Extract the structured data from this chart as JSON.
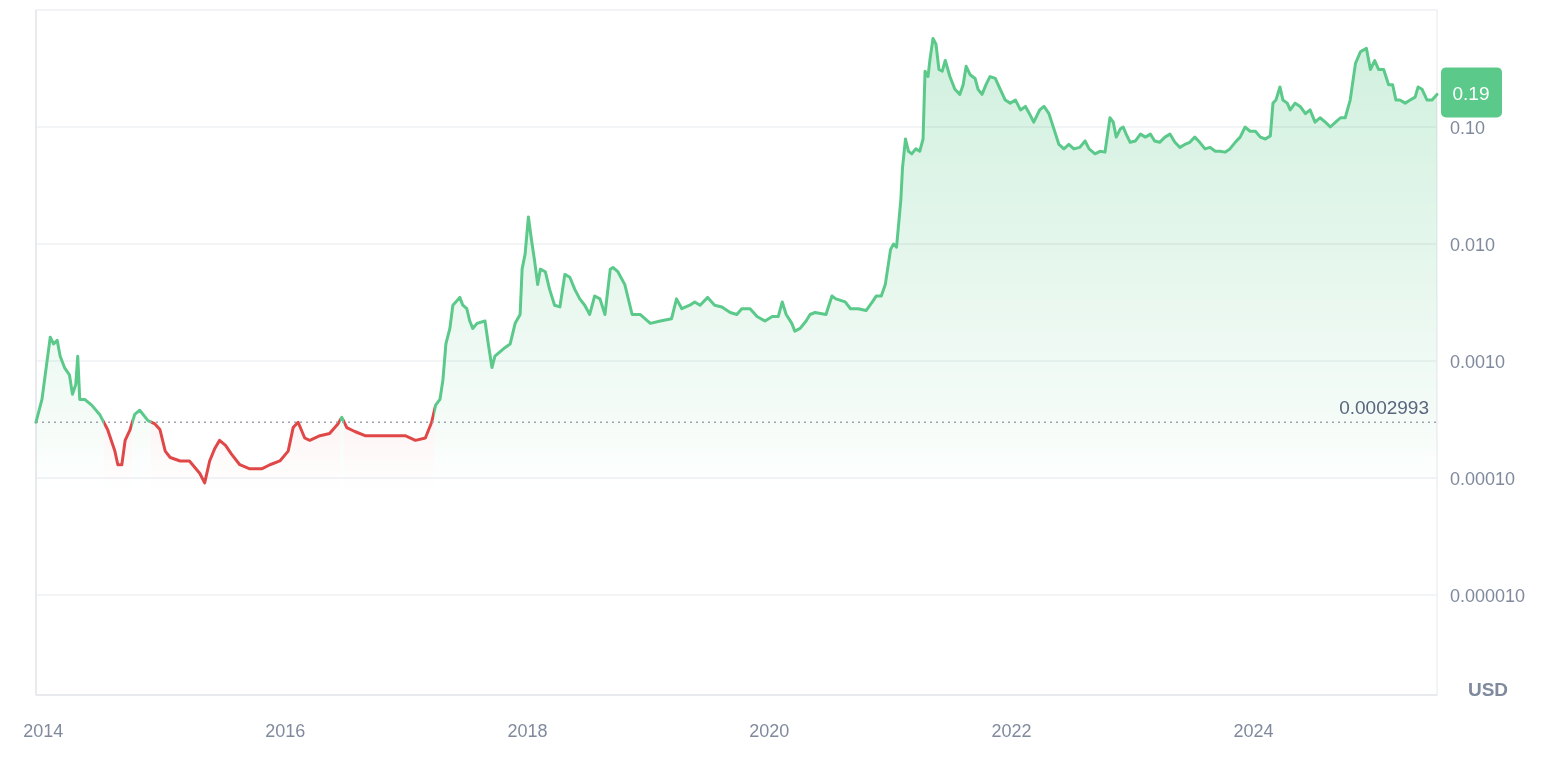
{
  "chart_data": {
    "type": "area",
    "log": "y",
    "grid": "y",
    "xlim": [
      "2013-12-10",
      "2025-07-08"
    ],
    "xticks": [
      "2014",
      "2016",
      "2018",
      "2020",
      "2022",
      "2024"
    ],
    "ylim": [
      1.4e-06,
      1.0
    ],
    "yticks": [
      {
        "value": 1e-05,
        "label": "0.000010"
      },
      {
        "value": 0.0001,
        "label": "0.00010"
      },
      {
        "value": 0.001,
        "label": "0.0010"
      },
      {
        "value": 0.01,
        "label": "0.010"
      },
      {
        "value": 0.1,
        "label": "0.10"
      }
    ],
    "ref_lines": [
      {
        "axis": "y",
        "value": 0.0002993,
        "label": "0.0002993",
        "color": "#9ca3af",
        "line_style": "dotted"
      }
    ],
    "annotations": [
      {
        "text": "0.19",
        "x": "2025-07-08",
        "y": 0.19
      },
      "USD"
    ],
    "x": [
      "2013-12-10",
      "2013-12-28",
      "2014-01-22",
      "2014-02-01",
      "2014-02-12",
      "2014-02-21",
      "2014-03-06",
      "2014-03-21",
      "2014-03-30",
      "2014-04-09",
      "2014-04-15",
      "2014-04-21",
      "2014-05-06",
      "2014-05-27",
      "2014-06-20",
      "2014-07-14",
      "2014-08-05",
      "2014-08-14",
      "2014-08-26",
      "2014-09-05",
      "2014-09-20",
      "2014-10-04",
      "2014-10-19",
      "2014-11-13",
      "2014-12-04",
      "2014-12-19",
      "2015-01-04",
      "2015-01-19",
      "2015-02-18",
      "2015-03-18",
      "2015-04-18",
      "2015-05-03",
      "2015-05-18",
      "2015-06-03",
      "2015-06-17",
      "2015-07-05",
      "2015-07-23",
      "2015-08-17",
      "2015-09-16",
      "2015-10-22",
      "2015-11-16",
      "2015-12-16",
      "2016-01-10",
      "2016-01-25",
      "2016-02-09",
      "2016-02-29",
      "2016-03-15",
      "2016-04-15",
      "2016-05-14",
      "2016-06-08",
      "2016-06-20",
      "2016-07-05",
      "2016-07-29",
      "2016-08-29",
      "2016-10-13",
      "2016-11-28",
      "2016-12-28",
      "2017-01-28",
      "2017-02-27",
      "2017-03-18",
      "2017-03-30",
      "2017-04-12",
      "2017-04-21",
      "2017-04-30",
      "2017-05-12",
      "2017-05-21",
      "2017-05-30",
      "2017-06-11",
      "2017-06-20",
      "2017-07-02",
      "2017-07-11",
      "2017-07-20",
      "2017-08-02",
      "2017-08-26",
      "2017-09-05",
      "2017-09-16",
      "2017-09-25",
      "2017-10-25",
      "2017-11-10",
      "2017-11-25",
      "2017-12-10",
      "2017-12-16",
      "2017-12-25",
      "2018-01-04",
      "2018-01-13",
      "2018-01-22",
      "2018-02-01",
      "2018-02-09",
      "2018-02-24",
      "2018-03-09",
      "2018-03-24",
      "2018-04-09",
      "2018-04-24",
      "2018-05-09",
      "2018-05-24",
      "2018-06-08",
      "2018-06-23",
      "2018-07-08",
      "2018-07-23",
      "2018-08-08",
      "2018-08-23",
      "2018-09-08",
      "2018-09-16",
      "2018-10-01",
      "2018-10-22",
      "2018-11-13",
      "2018-12-07",
      "2019-01-07",
      "2019-02-06",
      "2019-03-12",
      "2019-03-27",
      "2019-04-12",
      "2019-05-06",
      "2019-05-21",
      "2019-06-06",
      "2019-06-29",
      "2019-07-20",
      "2019-08-11",
      "2019-09-05",
      "2019-09-25",
      "2019-10-10",
      "2019-11-04",
      "2019-11-25",
      "2019-12-19",
      "2020-01-10",
      "2020-01-28",
      "2020-02-09",
      "2020-02-21",
      "2020-03-09",
      "2020-03-18",
      "2020-04-03",
      "2020-04-21",
      "2020-05-03",
      "2020-05-18",
      "2020-06-20",
      "2020-07-08",
      "2020-07-20",
      "2020-08-17",
      "2020-09-02",
      "2020-09-25",
      "2020-10-19",
      "2020-11-07",
      "2020-11-19",
      "2020-12-04",
      "2020-12-16",
      "2021-01-01",
      "2021-01-10",
      "2021-01-19",
      "2021-02-01",
      "2021-02-06",
      "2021-02-15",
      "2021-02-24",
      "2021-03-06",
      "2021-03-18",
      "2021-03-30",
      "2021-04-09",
      "2021-04-15",
      "2021-04-24",
      "2021-04-30",
      "2021-05-09",
      "2021-05-18",
      "2021-05-27",
      "2021-06-06",
      "2021-06-15",
      "2021-06-29",
      "2021-07-14",
      "2021-07-29",
      "2021-08-08",
      "2021-08-17",
      "2021-08-29",
      "2021-09-13",
      "2021-09-22",
      "2021-10-04",
      "2021-10-16",
      "2021-10-28",
      "2021-11-13",
      "2021-11-28",
      "2021-12-13",
      "2021-12-28",
      "2022-01-13",
      "2022-01-28",
      "2022-02-12",
      "2022-02-24",
      "2022-03-09",
      "2022-03-27",
      "2022-04-09",
      "2022-04-24",
      "2022-05-09",
      "2022-05-24",
      "2022-06-08",
      "2022-06-23",
      "2022-07-08",
      "2022-07-26",
      "2022-08-11",
      "2022-08-23",
      "2022-09-10",
      "2022-09-25",
      "2022-10-10",
      "2022-10-25",
      "2022-11-04",
      "2022-11-13",
      "2022-11-25",
      "2022-12-04",
      "2022-12-13",
      "2022-12-25",
      "2023-01-10",
      "2023-01-25",
      "2023-02-09",
      "2023-02-24",
      "2023-03-09",
      "2023-03-24",
      "2023-04-09",
      "2023-04-24",
      "2023-05-09",
      "2023-05-24",
      "2023-06-08",
      "2023-06-23",
      "2023-07-08",
      "2023-07-23",
      "2023-08-08",
      "2023-08-23",
      "2023-09-08",
      "2023-09-22",
      "2023-10-07",
      "2023-10-22",
      "2023-11-07",
      "2023-11-22",
      "2023-12-07",
      "2023-12-22",
      "2024-01-07",
      "2024-01-22",
      "2024-02-06",
      "2024-02-21",
      "2024-02-29",
      "2024-03-09",
      "2024-03-21",
      "2024-03-30",
      "2024-04-12",
      "2024-04-21",
      "2024-05-06",
      "2024-05-21",
      "2024-06-06",
      "2024-06-20",
      "2024-07-05",
      "2024-07-20",
      "2024-08-05",
      "2024-08-20",
      "2024-09-05",
      "2024-09-20",
      "2024-10-04",
      "2024-10-19",
      "2024-11-04",
      "2024-11-19",
      "2024-12-07",
      "2024-12-19",
      "2025-01-01",
      "2025-01-13",
      "2025-01-28",
      "2025-02-12",
      "2025-02-24",
      "2025-03-06",
      "2025-03-18",
      "2025-04-03",
      "2025-04-18",
      "2025-05-03",
      "2025-05-12",
      "2025-05-24",
      "2025-06-08",
      "2025-06-23",
      "2025-07-08"
    ],
    "series": [
      {
        "colors": [
          "#5ac98a",
          "#5ac98a",
          "#5ac98a",
          "#5ac98a",
          "#5ac98a",
          "#5ac98a",
          "#5ac98a",
          "#5ac98a",
          "#5ac98a",
          "#5ac98a",
          "#5ac98a",
          "#5ac98a",
          "#5ac98a",
          "#5ac98a",
          "#5ac98a",
          "#e04848",
          "#e04848",
          "#e04848",
          "#e04848",
          "#e04848",
          "#e04848",
          "#5ac98a",
          "#5ac98a",
          "#5ac98a",
          "#e04848",
          "#e04848",
          "#e04848",
          "#e04848",
          "#e04848",
          "#e04848",
          "#e04848",
          "#e04848",
          "#e04848",
          "#e04848",
          "#e04848",
          "#e04848",
          "#e04848",
          "#e04848",
          "#e04848",
          "#e04848",
          "#e04848",
          "#e04848",
          "#e04848",
          "#e04848",
          "#e04848",
          "#e04848",
          "#e04848",
          "#e04848",
          "#e04848",
          "#e04848",
          "#5ac98a",
          "#e04848",
          "#e04848",
          "#e04848",
          "#e04848",
          "#e04848",
          "#e04848",
          "#e04848",
          "#e04848",
          "#e04848",
          "#5ac98a",
          "#5ac98a",
          "#5ac98a",
          "#5ac98a",
          "#5ac98a",
          "#5ac98a",
          "#5ac98a",
          "#5ac98a",
          "#5ac98a",
          "#5ac98a",
          "#5ac98a",
          "#5ac98a",
          "#5ac98a",
          "#5ac98a",
          "#5ac98a",
          "#5ac98a",
          "#5ac98a",
          "#5ac98a",
          "#5ac98a",
          "#5ac98a",
          "#5ac98a",
          "#5ac98a",
          "#5ac98a",
          "#5ac98a",
          "#5ac98a",
          "#5ac98a",
          "#5ac98a",
          "#5ac98a",
          "#5ac98a",
          "#5ac98a",
          "#5ac98a",
          "#5ac98a",
          "#5ac98a",
          "#5ac98a",
          "#5ac98a",
          "#5ac98a",
          "#5ac98a",
          "#5ac98a",
          "#5ac98a",
          "#5ac98a",
          "#5ac98a",
          "#5ac98a",
          "#5ac98a",
          "#5ac98a",
          "#5ac98a",
          "#5ac98a",
          "#5ac98a",
          "#5ac98a",
          "#5ac98a",
          "#5ac98a",
          "#5ac98a",
          "#5ac98a",
          "#5ac98a",
          "#5ac98a",
          "#5ac98a",
          "#5ac98a",
          "#5ac98a",
          "#5ac98a",
          "#5ac98a",
          "#5ac98a",
          "#5ac98a",
          "#5ac98a",
          "#5ac98a",
          "#5ac98a",
          "#5ac98a",
          "#5ac98a",
          "#5ac98a",
          "#5ac98a",
          "#5ac98a",
          "#5ac98a",
          "#5ac98a",
          "#5ac98a",
          "#5ac98a",
          "#5ac98a",
          "#5ac98a",
          "#5ac98a",
          "#5ac98a",
          "#5ac98a",
          "#5ac98a",
          "#5ac98a",
          "#5ac98a",
          "#5ac98a",
          "#5ac98a",
          "#5ac98a",
          "#5ac98a",
          "#5ac98a",
          "#5ac98a",
          "#5ac98a",
          "#5ac98a",
          "#5ac98a",
          "#5ac98a",
          "#5ac98a",
          "#5ac98a",
          "#5ac98a",
          "#5ac98a",
          "#5ac98a",
          "#5ac98a",
          "#5ac98a",
          "#5ac98a",
          "#5ac98a",
          "#5ac98a",
          "#5ac98a",
          "#5ac98a",
          "#5ac98a",
          "#5ac98a",
          "#5ac98a",
          "#5ac98a",
          "#5ac98a",
          "#5ac98a",
          "#5ac98a",
          "#5ac98a",
          "#5ac98a",
          "#5ac98a",
          "#5ac98a",
          "#5ac98a",
          "#5ac98a",
          "#5ac98a",
          "#5ac98a",
          "#5ac98a",
          "#5ac98a",
          "#5ac98a",
          "#5ac98a",
          "#5ac98a",
          "#5ac98a",
          "#5ac98a",
          "#5ac98a",
          "#5ac98a",
          "#5ac98a",
          "#5ac98a",
          "#5ac98a",
          "#5ac98a",
          "#5ac98a",
          "#5ac98a",
          "#5ac98a",
          "#5ac98a",
          "#5ac98a",
          "#5ac98a",
          "#5ac98a",
          "#5ac98a",
          "#5ac98a",
          "#5ac98a",
          "#5ac98a",
          "#5ac98a",
          "#5ac98a",
          "#5ac98a",
          "#5ac98a",
          "#5ac98a",
          "#5ac98a",
          "#5ac98a",
          "#5ac98a",
          "#5ac98a",
          "#5ac98a",
          "#5ac98a",
          "#5ac98a",
          "#5ac98a",
          "#5ac98a",
          "#5ac98a",
          "#5ac98a",
          "#5ac98a",
          "#5ac98a",
          "#5ac98a",
          "#5ac98a",
          "#5ac98a",
          "#5ac98a",
          "#5ac98a",
          "#5ac98a",
          "#5ac98a",
          "#5ac98a",
          "#5ac98a",
          "#5ac98a",
          "#5ac98a",
          "#5ac98a",
          "#5ac98a",
          "#5ac98a",
          "#5ac98a",
          "#5ac98a",
          "#5ac98a",
          "#5ac98a",
          "#5ac98a",
          "#5ac98a",
          "#5ac98a",
          "#5ac98a",
          "#5ac98a",
          "#5ac98a",
          "#5ac98a",
          "#5ac98a",
          "#5ac98a",
          "#5ac98a",
          "#5ac98a",
          "#5ac98a",
          "#5ac98a",
          "#5ac98a",
          "#5ac98a",
          "#5ac98a",
          "#5ac98a",
          "#5ac98a",
          "#5ac98a",
          "#5ac98a",
          "#5ac98a",
          "#5ac98a",
          "#5ac98a",
          "#5ac98a",
          "#5ac98a",
          "#5ac98a",
          "#5ac98a",
          "#5ac98a",
          "#5ac98a",
          "#5ac98a",
          "#5ac98a",
          "#5ac98a"
        ],
        "values": [
          0.0003,
          0.00047,
          0.0016,
          0.0014,
          0.0015,
          0.0011,
          0.00088,
          0.00076,
          0.00052,
          0.00063,
          0.0011,
          0.00047,
          0.00047,
          0.00042,
          0.00035,
          0.00026,
          0.00017,
          0.00013,
          0.00013,
          0.00021,
          0.00026,
          0.00035,
          0.00038,
          0.00031,
          0.00029,
          0.00026,
          0.00017,
          0.00015,
          0.00014,
          0.00014,
          0.00011,
          9.1e-05,
          0.00014,
          0.00018,
          0.00021,
          0.00019,
          0.00016,
          0.00013,
          0.00012,
          0.00012,
          0.00013,
          0.00014,
          0.00017,
          0.00027,
          0.0003,
          0.00022,
          0.00021,
          0.00023,
          0.00024,
          0.00029,
          0.00033,
          0.00027,
          0.00025,
          0.00023,
          0.00023,
          0.00023,
          0.00023,
          0.00021,
          0.00022,
          0.0003,
          0.00042,
          0.00047,
          0.00069,
          0.0014,
          0.0019,
          0.003,
          0.0032,
          0.0035,
          0.003,
          0.0028,
          0.0022,
          0.0019,
          0.0021,
          0.0022,
          0.0014,
          0.00088,
          0.0011,
          0.0013,
          0.0014,
          0.0021,
          0.0025,
          0.0061,
          0.0082,
          0.017,
          0.011,
          0.0074,
          0.0045,
          0.0061,
          0.0058,
          0.0041,
          0.003,
          0.0029,
          0.0055,
          0.0052,
          0.0041,
          0.0034,
          0.003,
          0.0025,
          0.0036,
          0.0034,
          0.0025,
          0.0061,
          0.0063,
          0.0058,
          0.0045,
          0.0025,
          0.0025,
          0.0021,
          0.0022,
          0.0023,
          0.0034,
          0.0028,
          0.003,
          0.0032,
          0.003,
          0.0035,
          0.003,
          0.0029,
          0.0026,
          0.0025,
          0.0028,
          0.0028,
          0.0024,
          0.0022,
          0.0024,
          0.0024,
          0.0032,
          0.0025,
          0.0021,
          0.0018,
          0.0019,
          0.0022,
          0.0025,
          0.0026,
          0.0025,
          0.0036,
          0.0034,
          0.0032,
          0.0028,
          0.0028,
          0.0027,
          0.0032,
          0.0036,
          0.0036,
          0.0045,
          0.009,
          0.01,
          0.0094,
          0.024,
          0.045,
          0.079,
          0.062,
          0.059,
          0.065,
          0.062,
          0.079,
          0.3,
          0.27,
          0.38,
          0.57,
          0.51,
          0.31,
          0.3,
          0.37,
          0.27,
          0.21,
          0.19,
          0.23,
          0.33,
          0.28,
          0.26,
          0.21,
          0.19,
          0.23,
          0.27,
          0.26,
          0.21,
          0.17,
          0.16,
          0.17,
          0.14,
          0.15,
          0.13,
          0.11,
          0.14,
          0.15,
          0.13,
          0.096,
          0.071,
          0.065,
          0.071,
          0.065,
          0.067,
          0.076,
          0.065,
          0.059,
          0.062,
          0.061,
          0.12,
          0.11,
          0.082,
          0.096,
          0.1,
          0.087,
          0.074,
          0.076,
          0.087,
          0.082,
          0.087,
          0.076,
          0.074,
          0.082,
          0.087,
          0.074,
          0.067,
          0.071,
          0.074,
          0.082,
          0.074,
          0.065,
          0.067,
          0.062,
          0.062,
          0.061,
          0.065,
          0.074,
          0.082,
          0.1,
          0.092,
          0.092,
          0.082,
          0.079,
          0.084,
          0.16,
          0.17,
          0.22,
          0.17,
          0.16,
          0.14,
          0.16,
          0.15,
          0.13,
          0.14,
          0.11,
          0.12,
          0.11,
          0.1,
          0.11,
          0.12,
          0.12,
          0.17,
          0.35,
          0.44,
          0.47,
          0.31,
          0.37,
          0.31,
          0.31,
          0.23,
          0.23,
          0.17,
          0.17,
          0.16,
          0.17,
          0.18,
          0.22,
          0.21,
          0.17,
          0.17,
          0.19
        ]
      }
    ]
  }
}
